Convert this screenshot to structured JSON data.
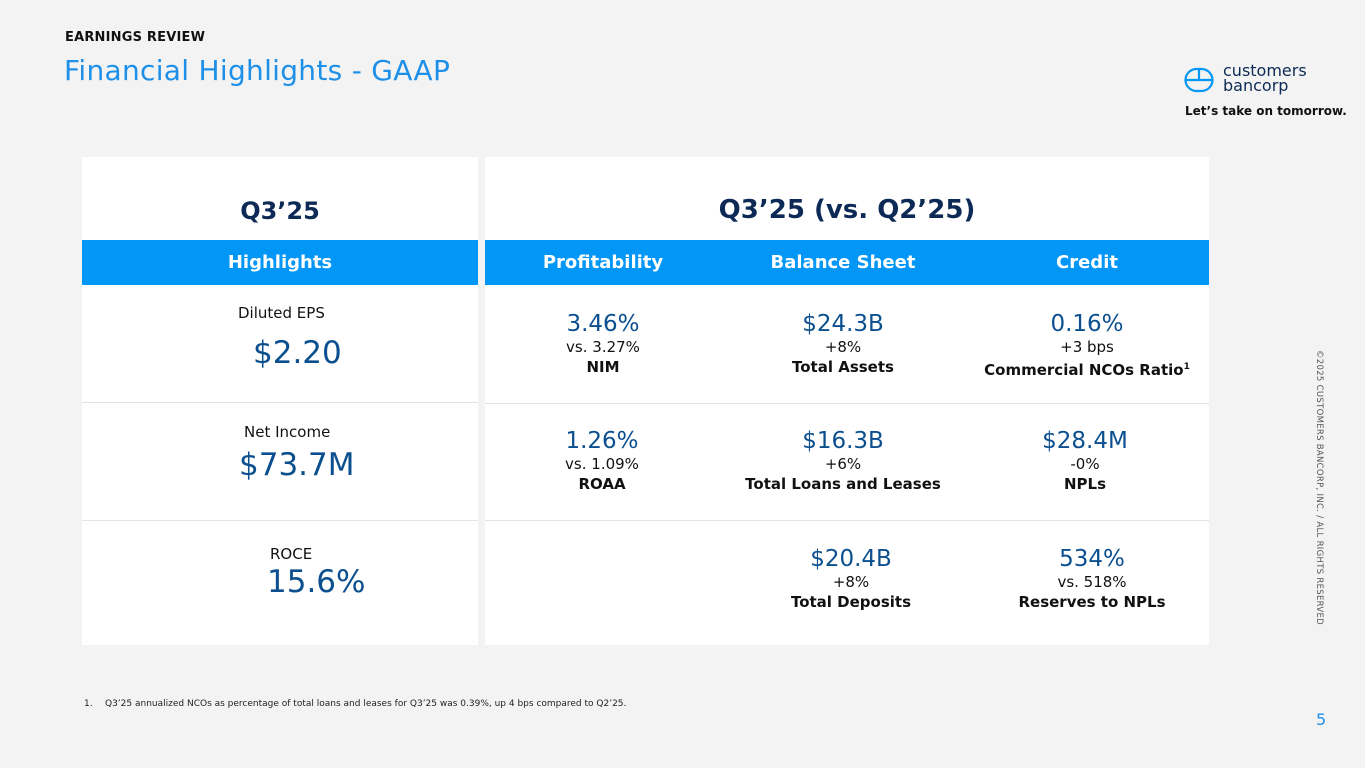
{
  "header": {
    "eyebrow": "EARNINGS REVIEW",
    "title": "Financial Highlights - GAAP"
  },
  "brand": {
    "logo_line1": "customers",
    "logo_line2": "bancorp",
    "tagline": "Let’s take on tomorrow.",
    "copyright": "©2025 CUSTOMERS BANCORP, INC. / ALL RIGHTS RESERVED",
    "accent_color": "#0296f7",
    "navy_color": "#0c2a55"
  },
  "left_panel": {
    "title": "Q3’25",
    "band_label": "Highlights",
    "rows": [
      {
        "label": "Diluted EPS",
        "value": "$2.20"
      },
      {
        "label": "Net Income",
        "value": "$73.7M"
      },
      {
        "label": "ROCE",
        "value": "15.6%"
      }
    ]
  },
  "right_panel": {
    "title": "Q3’25 (vs. Q2’25)",
    "columns": [
      "Profitability",
      "Balance Sheet",
      "Credit"
    ],
    "rows": [
      [
        {
          "value": "3.46%",
          "change": "vs. 3.27%",
          "label": "NIM"
        },
        {
          "value": "$24.3B",
          "change": "+8%",
          "label": "Total Assets"
        },
        {
          "value": "0.16%",
          "change": "+3 bps",
          "label": "Commercial NCOs Ratio",
          "sup": "1"
        }
      ],
      [
        {
          "value": "1.26%",
          "change": "vs. 1.09%",
          "label": "ROAA"
        },
        {
          "value": "$16.3B",
          "change": "+6%",
          "label": "Total Loans and Leases"
        },
        {
          "value": "$28.4M",
          "change": "-0%",
          "label": "NPLs"
        }
      ],
      [
        {
          "value": "",
          "change": "",
          "label": ""
        },
        {
          "value": "$20.4B",
          "change": "+8%",
          "label": "Total Deposits"
        },
        {
          "value": "534%",
          "change": "vs. 518%",
          "label": "Reserves to NPLs"
        }
      ]
    ]
  },
  "footnote": {
    "number": "1.",
    "text": "Q3’25 annualized NCOs as percentage of total loans and leases for Q3’25 was 0.39%, up 4 bps compared to Q2’25."
  },
  "page_number": "5"
}
